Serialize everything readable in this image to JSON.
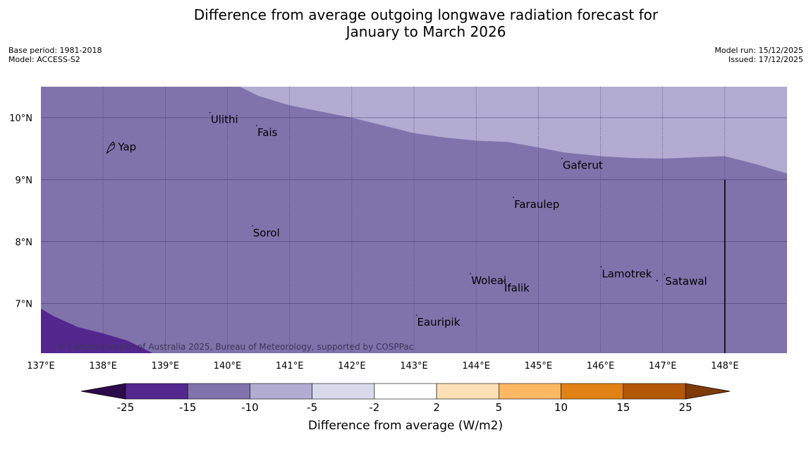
{
  "title": {
    "line1": "Difference from average outgoing longwave radiation forecast for",
    "line2": "January to March 2026"
  },
  "info_left": {
    "base_period": "Base period: 1981-2018",
    "model": "Model: ACCESS-S2"
  },
  "info_right": {
    "model_run": "Model run: 15/12/2025",
    "issued": "Issued: 17/12/2025"
  },
  "map": {
    "lon_range": [
      137,
      149
    ],
    "lat_range": [
      6.2,
      10.5
    ],
    "x_ticks": [
      "137°E",
      "138°E",
      "139°E",
      "140°E",
      "141°E",
      "142°E",
      "143°E",
      "144°E",
      "145°E",
      "146°E",
      "147°E",
      "148°E"
    ],
    "y_ticks": [
      "10°N",
      "9°N",
      "8°N",
      "7°N"
    ],
    "base_category": "-15 to -10",
    "category_colors": {
      "below_minus25": "#2d0a4a",
      "minus25_to_minus15": "#54278f",
      "minus15_to_minus10": "#8073ac",
      "minus10_to_minus5": "#b2abd2",
      "minus5_to_minus2": "#d8daeb",
      "minus2_to_2": "#ffffff",
      "2_to_5": "#fee0b6",
      "5_to_10": "#fdb863",
      "10_to_15": "#e08214",
      "15_to_25": "#b35806",
      "above_25": "#7f3b08"
    },
    "northern_boundary_lon_lat": [
      [
        140.2,
        10.5
      ],
      [
        140.5,
        10.35
      ],
      [
        141,
        10.2
      ],
      [
        142,
        10.0
      ],
      [
        143,
        9.75
      ],
      [
        143.5,
        9.68
      ],
      [
        144,
        9.63
      ],
      [
        144.5,
        9.61
      ],
      [
        145,
        9.52
      ],
      [
        145.4,
        9.44
      ],
      [
        146,
        9.38
      ],
      [
        146.5,
        9.35
      ],
      [
        147,
        9.34
      ],
      [
        147.5,
        9.36
      ],
      [
        148,
        9.38
      ],
      [
        148.5,
        9.25
      ],
      [
        149,
        9.1
      ]
    ],
    "southwest_boundary_lon_lat": [
      [
        137,
        6.92
      ],
      [
        137.2,
        6.8
      ],
      [
        137.6,
        6.62
      ],
      [
        138,
        6.52
      ],
      [
        138.4,
        6.4
      ],
      [
        138.8,
        6.2
      ]
    ],
    "places": [
      {
        "name": "Yap",
        "lon": 138.15,
        "lat": 9.53
      },
      {
        "name": "Ulithi",
        "lon": 139.72,
        "lat": 9.97
      },
      {
        "name": "Fais",
        "lon": 140.47,
        "lat": 9.76
      },
      {
        "name": "Gaferut",
        "lon": 145.38,
        "lat": 9.23
      },
      {
        "name": "Faraulep",
        "lon": 144.6,
        "lat": 8.6
      },
      {
        "name": "Sorol",
        "lon": 140.4,
        "lat": 8.14
      },
      {
        "name": "Woleai",
        "lon": 143.91,
        "lat": 7.37
      },
      {
        "name": "Ifalik",
        "lon": 144.44,
        "lat": 7.25
      },
      {
        "name": "Lamotrek",
        "lon": 146.01,
        "lat": 7.48
      },
      {
        "name": "Satawal",
        "lon": 147.03,
        "lat": 7.36
      },
      {
        "name": "Eauripik",
        "lon": 143.04,
        "lat": 6.7
      }
    ],
    "copyright": "© Commonwealth of Australia 2025, Bureau of Meteorology, supported by COSPPac"
  },
  "colorbar": {
    "tick_labels": [
      "-25",
      "-15",
      "-10",
      "-5",
      "-2",
      "2",
      "5",
      "10",
      "15",
      "25"
    ],
    "label": "Difference from average (W/m2)"
  }
}
